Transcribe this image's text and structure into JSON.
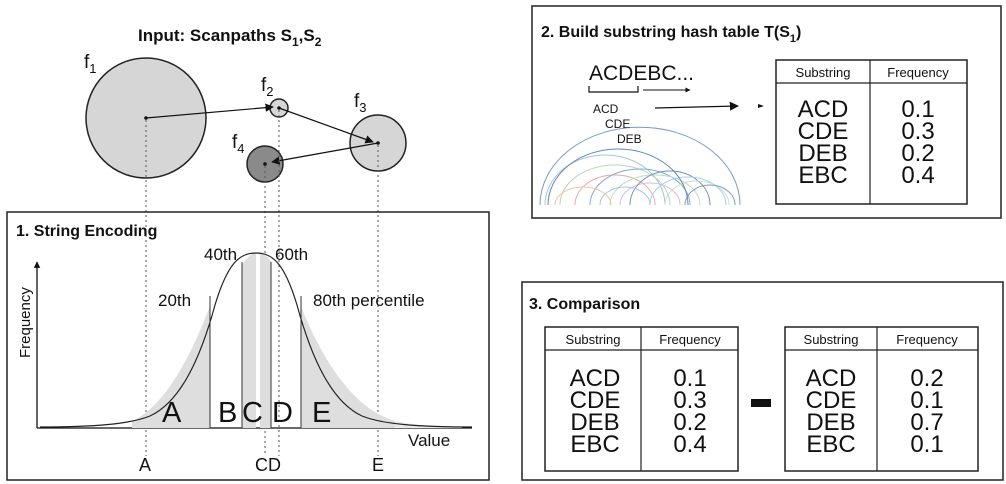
{
  "input": {
    "title_main": "Input: Scanpaths S",
    "title_sub1": "1",
    "title_comma": ",S",
    "title_sub2": "2",
    "fixations": [
      {
        "label": "f",
        "sub": "1"
      },
      {
        "label": "f",
        "sub": "2"
      },
      {
        "label": "f",
        "sub": "3"
      },
      {
        "label": "f",
        "sub": "4"
      }
    ]
  },
  "encoding": {
    "title": "1. String Encoding",
    "ylabel": "Frequency",
    "xlabel": "Value",
    "percentiles": [
      "20th",
      "40th",
      "60th",
      "80th percentile"
    ],
    "bin_letters": [
      "A",
      "B",
      "C",
      "D",
      "E"
    ],
    "axis_letters": [
      "A",
      "CD",
      "E"
    ]
  },
  "hash": {
    "title_main": "2. Build substring hash table T(S",
    "title_sub": "1",
    "title_close": ")",
    "sequence": "ACDEBC...",
    "substrings": [
      "ACD",
      "CDE",
      "DEB"
    ],
    "table": {
      "headers": [
        "Substring",
        "Frequency"
      ],
      "substrings": [
        "ACD",
        "CDE",
        "DEB",
        "EBC"
      ],
      "frequencies": [
        "0.1",
        "0.3",
        "0.2",
        "0.4"
      ]
    }
  },
  "comparison": {
    "title": "3. Comparison",
    "operator": "-",
    "left": {
      "headers": [
        "Substring",
        "Frequency"
      ],
      "substrings": [
        "ACD",
        "CDE",
        "DEB",
        "EBC"
      ],
      "frequencies": [
        "0.1",
        "0.3",
        "0.2",
        "0.4"
      ]
    },
    "right": {
      "headers": [
        "Substring",
        "Frequency"
      ],
      "substrings": [
        "ACD",
        "CDE",
        "DEB",
        "EBC"
      ],
      "frequencies": [
        "0.2",
        "0.1",
        "0.7",
        "0.1"
      ]
    }
  }
}
